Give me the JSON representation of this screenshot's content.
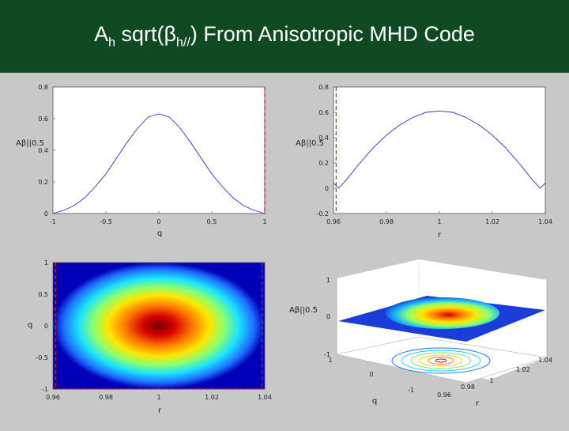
{
  "slide": {
    "title_main": "A",
    "title_sub_h": "h",
    "title_mid": " sqrt(β",
    "title_sub_hpar": "h//",
    "title_end": ") From Anisotropic MHD Code"
  },
  "colors": {
    "header_bg": "#0f4a22",
    "line": "#2e2eb8",
    "marker": "#cc2222"
  },
  "chart_data": [
    {
      "type": "line",
      "panel": "top-left",
      "xlabel": "q",
      "ylabel": "Aβ||0.5",
      "xlim": [
        -1,
        1
      ],
      "ylim": [
        0,
        0.8
      ],
      "xticks": [
        "-1",
        "-0.5",
        "0",
        "0.5",
        "1"
      ],
      "yticks": [
        "0",
        "0.2",
        "0.4",
        "0.6",
        "0.8"
      ],
      "x": [
        -1,
        -0.9,
        -0.8,
        -0.7,
        -0.6,
        -0.5,
        -0.4,
        -0.3,
        -0.2,
        -0.1,
        0,
        0.1,
        0.2,
        0.3,
        0.4,
        0.5,
        0.6,
        0.7,
        0.8,
        0.9,
        1
      ],
      "y": [
        0,
        0.02,
        0.05,
        0.1,
        0.17,
        0.25,
        0.35,
        0.45,
        0.54,
        0.61,
        0.63,
        0.61,
        0.54,
        0.45,
        0.35,
        0.25,
        0.17,
        0.1,
        0.05,
        0.02,
        0
      ],
      "marker_x": 1
    },
    {
      "type": "line",
      "panel": "top-right",
      "xlabel": "r",
      "ylabel": "Aβ||0.5",
      "xlim": [
        0.96,
        1.04
      ],
      "ylim": [
        -0.2,
        0.8
      ],
      "xticks": [
        "0.96",
        "0.98",
        "1",
        "1.02",
        "1.04"
      ],
      "yticks": [
        "-0.2",
        "0",
        "0.2",
        "0.4",
        "0.6",
        "0.8"
      ],
      "x": [
        0.96,
        0.962,
        0.965,
        0.97,
        0.975,
        0.98,
        0.985,
        0.99,
        0.995,
        1.0,
        1.005,
        1.01,
        1.015,
        1.02,
        1.025,
        1.03,
        1.035,
        1.038,
        1.04
      ],
      "y": [
        0.04,
        0.0,
        0.07,
        0.2,
        0.32,
        0.42,
        0.5,
        0.56,
        0.6,
        0.61,
        0.6,
        0.56,
        0.5,
        0.42,
        0.32,
        0.2,
        0.07,
        0.0,
        0.04
      ],
      "marker_x": 0.961
    },
    {
      "type": "heatmap",
      "panel": "bottom-left",
      "xlabel": "r",
      "ylabel": "q",
      "xlim": [
        0.96,
        1.04
      ],
      "ylim": [
        -1,
        1
      ],
      "xticks": [
        "0.96",
        "0.98",
        "1",
        "1.02",
        "1.04"
      ],
      "yticks": [
        "-1",
        "-0.5",
        "0",
        "0.5",
        "1"
      ],
      "marker_x": [
        0.961,
        1.039
      ]
    },
    {
      "type": "surface",
      "panel": "bottom-right",
      "xlabel": "q",
      "ylabel": "r",
      "zlabel": "Aβ||0.5",
      "zticks": [
        "-1",
        "0",
        "1"
      ],
      "qticks": [
        "-1",
        "0",
        "1"
      ],
      "rticks": [
        "0.96",
        "0.98",
        "1",
        "1.02",
        "1.04"
      ]
    }
  ]
}
